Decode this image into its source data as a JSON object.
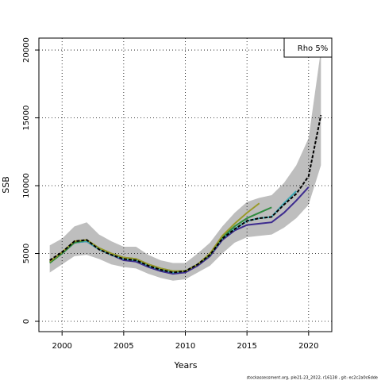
{
  "chart_data": {
    "type": "line",
    "xlabel": "Years",
    "ylabel": "SSB",
    "annotation": "Rho 5%",
    "footer": "stockassessment.org, ple21-23_2022, r16138 , git: ec2c2a0c6dde",
    "grid": true,
    "xlim": [
      1998.12,
      2021.88
    ],
    "ylim": [
      -760,
      20880
    ],
    "xticks": [
      2000,
      2005,
      2010,
      2015,
      2020
    ],
    "yticks": [
      0,
      5000,
      10000,
      15000,
      20000
    ],
    "x": [
      1999,
      2000,
      2001,
      2002,
      2003,
      2004,
      2005,
      2006,
      2007,
      2008,
      2009,
      2010,
      2011,
      2012,
      2013,
      2014,
      2015,
      2016,
      2017,
      2018,
      2019,
      2020,
      2021
    ],
    "band": {
      "color": "#bebebe",
      "upper": [
        5600,
        6100,
        7000,
        7300,
        6400,
        5900,
        5500,
        5500,
        4900,
        4500,
        4300,
        4300,
        5000,
        5800,
        7000,
        8000,
        8800,
        9100,
        9300,
        10200,
        11500,
        13500,
        20000
      ],
      "lower": [
        3600,
        4200,
        4800,
        4900,
        4600,
        4200,
        4000,
        3900,
        3500,
        3200,
        3000,
        3100,
        3600,
        4100,
        5000,
        5800,
        6200,
        6300,
        6400,
        6900,
        7600,
        8600,
        11500
      ]
    },
    "series": [
      {
        "color": "#3d2b8f",
        "dash": false,
        "values": [
          4400,
          5000,
          5800,
          5900,
          5300,
          4900,
          4500,
          4400,
          4000,
          3700,
          3500,
          3600,
          4100,
          4800,
          6000,
          6700,
          7100,
          7200,
          7300,
          8000,
          8900,
          9900,
          null
        ]
      },
      {
        "color": "#3fa9b5",
        "dash": false,
        "values": [
          4400,
          5000,
          5800,
          5900,
          5300,
          4900,
          4600,
          4500,
          4100,
          3800,
          3600,
          3700,
          4200,
          4900,
          6100,
          6800,
          7400,
          7600,
          7700,
          8700,
          9600,
          null,
          null
        ]
      },
      {
        "color": "#2e8b3e",
        "dash": false,
        "values": [
          4300,
          5000,
          5800,
          6000,
          5400,
          5000,
          4700,
          4600,
          4200,
          3900,
          3700,
          3700,
          4200,
          4900,
          6200,
          7000,
          7600,
          8000,
          8400,
          null,
          null,
          null,
          null
        ]
      },
      {
        "color": "#9a9a2a",
        "dash": false,
        "values": [
          4400,
          5100,
          5900,
          6000,
          5400,
          5000,
          4700,
          4600,
          4200,
          3900,
          3700,
          3700,
          4200,
          5000,
          6300,
          7200,
          8000,
          8700,
          null,
          null,
          null,
          null,
          null
        ]
      },
      {
        "color": "#000000",
        "dash": true,
        "values": [
          4500,
          5100,
          5900,
          6000,
          5300,
          4900,
          4600,
          4500,
          4100,
          3800,
          3600,
          3700,
          4200,
          4900,
          6100,
          6800,
          7400,
          7600,
          7700,
          8600,
          9400,
          10700,
          15200
        ]
      }
    ]
  }
}
